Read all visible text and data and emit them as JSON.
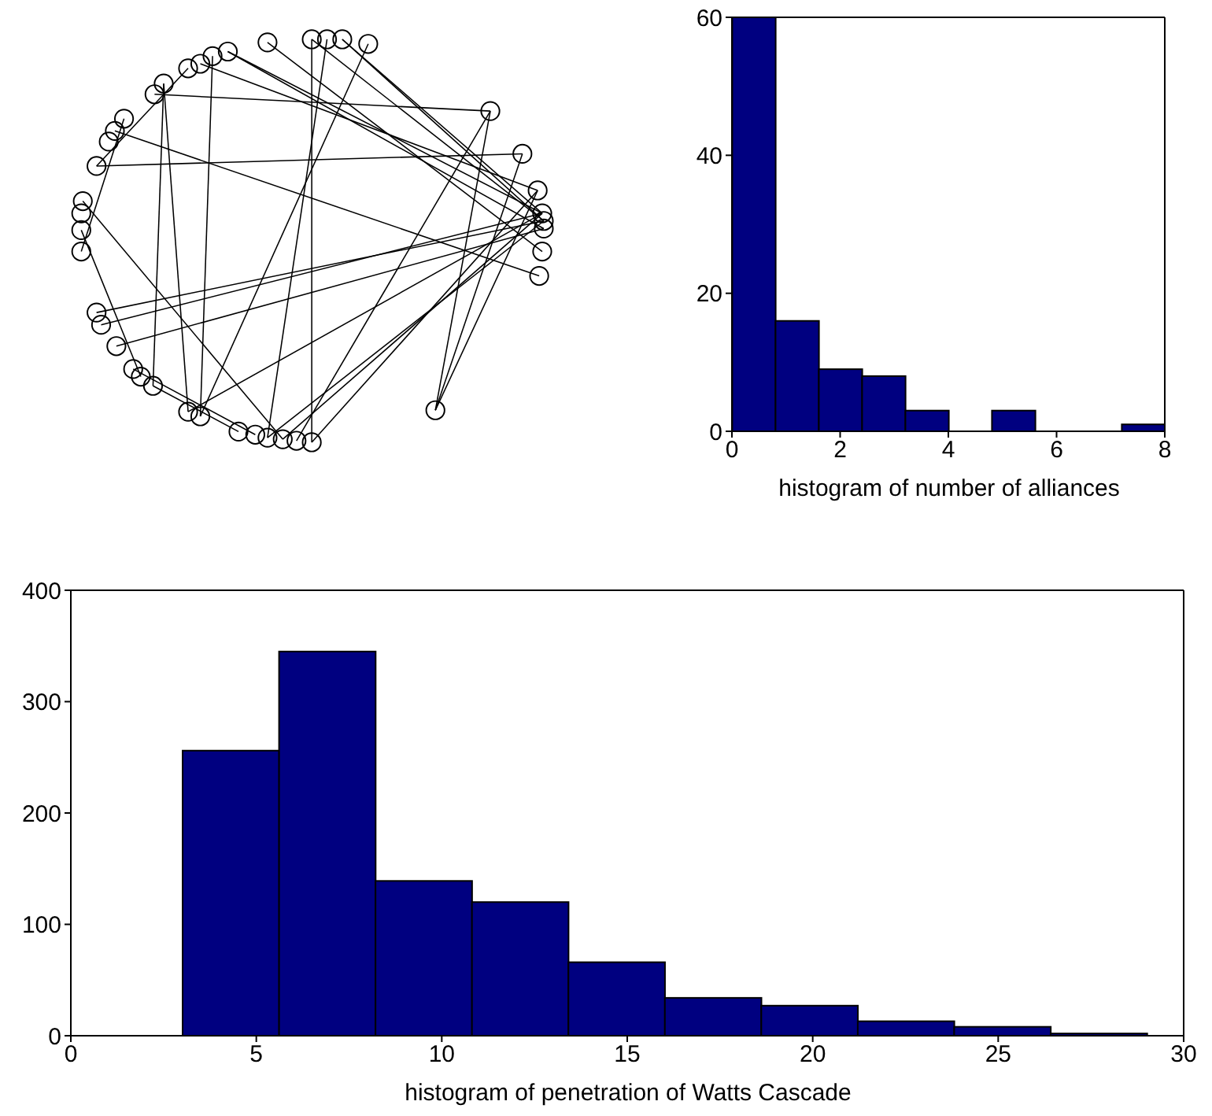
{
  "chart_data": [
    {
      "type": "histogram",
      "xlabel": "histogram of number of alliances",
      "bins": [
        0,
        0.8,
        1.6,
        2.4,
        3.2,
        4.0,
        4.8,
        5.6,
        6.4,
        7.2,
        8
      ],
      "values": [
        60,
        16,
        9,
        8,
        3,
        0,
        3,
        0,
        0,
        1
      ],
      "color": "#000080",
      "xlim": [
        0,
        8
      ],
      "xticks": [
        0,
        2,
        4,
        6,
        8
      ],
      "ylim": [
        0,
        60
      ],
      "yticks": [
        0,
        20,
        40,
        60
      ]
    },
    {
      "type": "histogram",
      "xlabel": "histogram of penetration of Watts Cascade",
      "bins": [
        3,
        5.6,
        8.2,
        10.8,
        13.4,
        16,
        18.6,
        21.2,
        23.8,
        26.4,
        29
      ],
      "values": [
        256,
        345,
        139,
        120,
        66,
        34,
        27,
        13,
        8,
        2
      ],
      "color": "#000080",
      "xlim": [
        0,
        30
      ],
      "xticks": [
        0,
        5,
        10,
        15,
        20,
        25,
        30
      ],
      "ylim": [
        0,
        400
      ],
      "yticks": [
        0,
        100,
        200,
        300,
        400
      ]
    }
  ]
}
